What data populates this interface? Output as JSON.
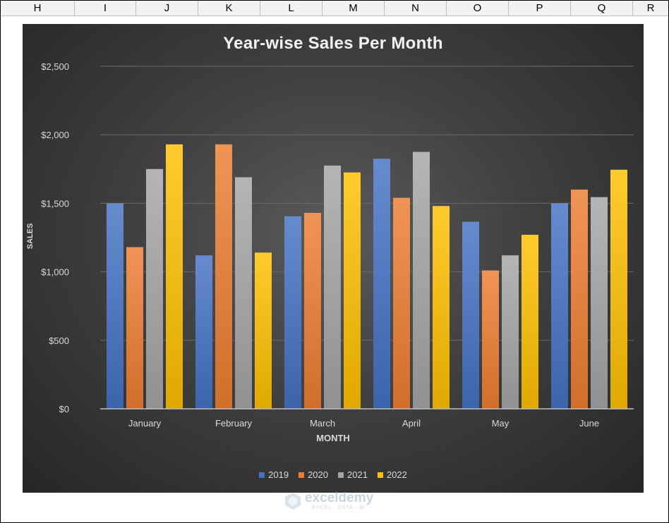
{
  "spreadsheet": {
    "columns": [
      "H",
      "I",
      "J",
      "K",
      "L",
      "M",
      "N",
      "O",
      "P",
      "Q",
      "R"
    ]
  },
  "chart_data": {
    "type": "bar",
    "title": "Year-wise Sales Per Month",
    "xlabel": "MONTH",
    "ylabel": "SALES",
    "categories": [
      "January",
      "February",
      "March",
      "April",
      "May",
      "June"
    ],
    "series": [
      {
        "name": "2019",
        "color": "#4472c4",
        "values": [
          1500,
          1120,
          1405,
          1825,
          1365,
          1500
        ]
      },
      {
        "name": "2020",
        "color": "#ed7d31",
        "values": [
          1180,
          1930,
          1430,
          1540,
          1010,
          1600
        ]
      },
      {
        "name": "2021",
        "color": "#a5a5a5",
        "values": [
          1750,
          1690,
          1775,
          1875,
          1120,
          1545
        ]
      },
      {
        "name": "2022",
        "color": "#ffc000",
        "values": [
          1930,
          1140,
          1725,
          1480,
          1270,
          1745
        ]
      }
    ],
    "ylim": [
      0,
      2500
    ],
    "yticks": [
      0,
      500,
      1000,
      1500,
      2000,
      2500
    ],
    "ytick_labels": [
      "$0",
      "$500",
      "$1,000",
      "$1,500",
      "$2,000",
      "$2,500"
    ],
    "grid": true,
    "legend": "bottom"
  },
  "watermark": {
    "name": "exceldemy",
    "tagline": "EXCEL · DATA · BI"
  }
}
